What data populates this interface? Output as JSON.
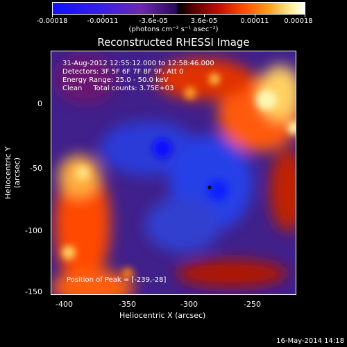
{
  "colorbar": {
    "tick_labels": [
      "-0.00018",
      "-0.00011",
      "-3.6e-05",
      "3.6e-05",
      "0.00011",
      "0.00018"
    ],
    "units": "(photons cm⁻² s⁻¹ asec⁻²)"
  },
  "title": "Reconstructed RHESSI Image",
  "info": {
    "time": "31-Aug-2012 12:55:12.000 to 12:58:46.000",
    "detectors": "Detectors: 3F 5F 6F 7F 8F 9F, Att 0",
    "energy": "Energy Range: 25.0 - 50.0 keV",
    "clean": "Clean     Total counts: 3.75E+03"
  },
  "peak": "Position of Peak = [-239,-28]",
  "axes": {
    "xlabel": "Heliocentric X (arcsec)",
    "ylabel": "Heliocentric Y (arcsec)",
    "xticks": [
      "-400",
      "-350",
      "-300",
      "-250"
    ],
    "yticks": [
      "0",
      "-50",
      "-100",
      "-150"
    ]
  },
  "footer_date": "16-May-2014 14:18",
  "colors": {
    "negative": "#1010ff",
    "positive": "#ffffff",
    "background": "#000000"
  }
}
